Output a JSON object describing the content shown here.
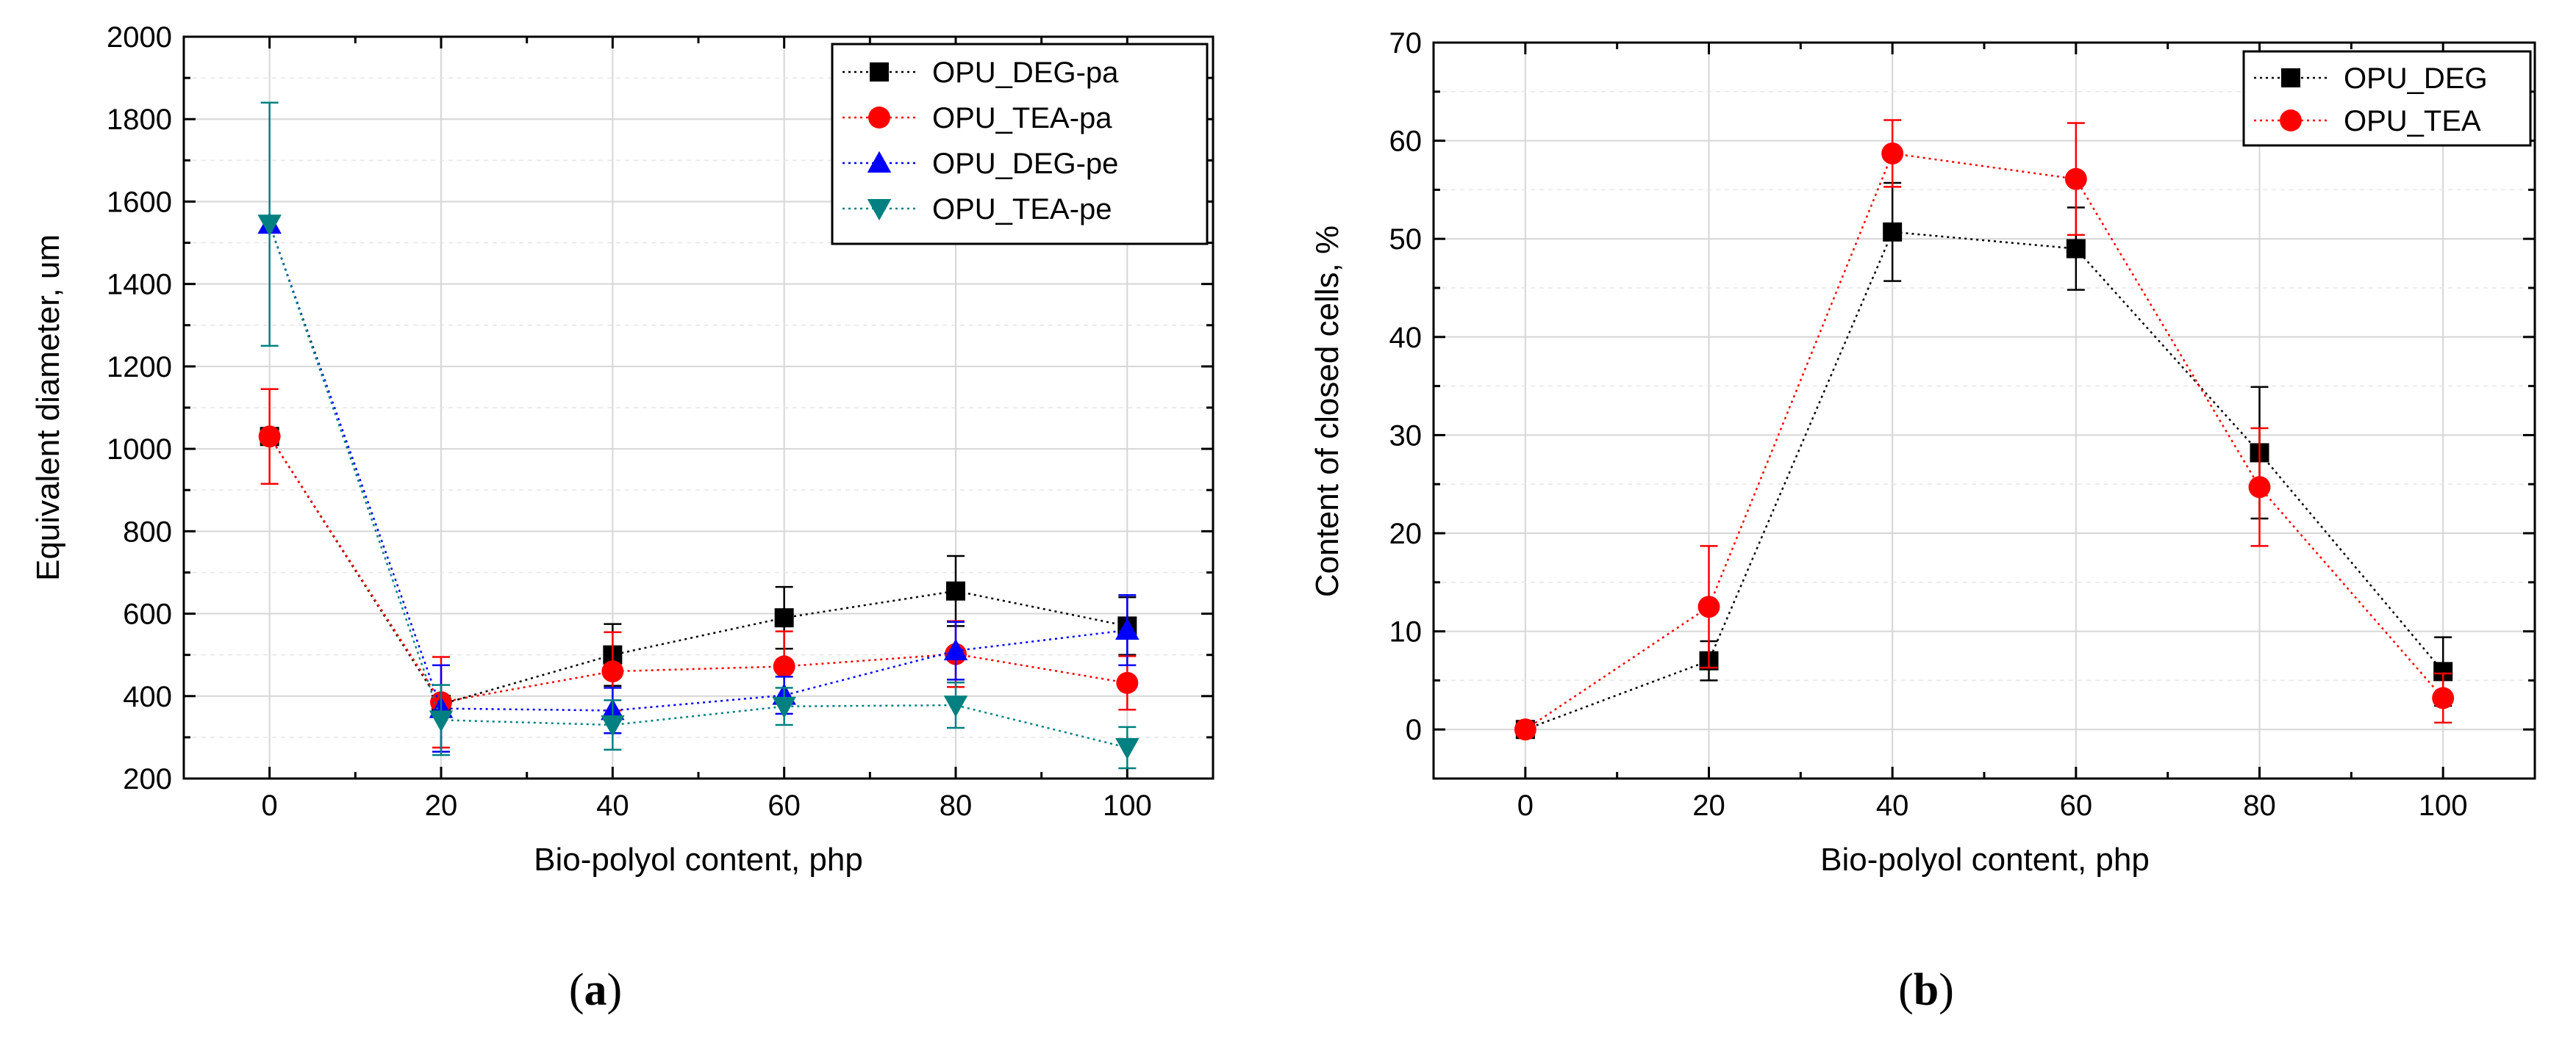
{
  "chart_data": [
    {
      "id": "a",
      "type": "line",
      "caption": {
        "open": "(",
        "letter": "a",
        "close": ")"
      },
      "xlabel": "Bio-polyol content, php",
      "ylabel": "Equivalent diameter, um",
      "xlim": [
        -10,
        110
      ],
      "ylim": [
        200,
        2000
      ],
      "x_ticks": [
        0,
        20,
        40,
        60,
        80,
        100
      ],
      "y_ticks": [
        200,
        400,
        600,
        800,
        1000,
        1200,
        1400,
        1600,
        1800,
        2000
      ],
      "grid": true,
      "legend_position": "top-right",
      "x": [
        0,
        20,
        40,
        60,
        80,
        100
      ],
      "series": [
        {
          "name": "OPU_DEG-pa",
          "color": "#000000",
          "marker": "square",
          "values": [
            1030,
            380,
            500,
            590,
            655,
            570
          ],
          "errors": [
            null,
            null,
            75,
            75,
            85,
            70
          ]
        },
        {
          "name": "OPU_TEA-pa",
          "color": "#ff0000",
          "marker": "circle",
          "values": [
            1030,
            385,
            460,
            472,
            502,
            432
          ],
          "errors": [
            115,
            110,
            95,
            85,
            80,
            65
          ]
        },
        {
          "name": "OPU_DEG-pe",
          "color": "#0000ff",
          "marker": "triangle-up",
          "values": [
            1545,
            370,
            365,
            402,
            510,
            560
          ],
          "errors": [
            null,
            105,
            55,
            45,
            70,
            85
          ]
        },
        {
          "name": "OPU_TEA-pe",
          "color": "#008080",
          "marker": "triangle-down",
          "values": [
            1545,
            342,
            330,
            375,
            378,
            275
          ],
          "errors": [
            295,
            85,
            60,
            45,
            55,
            50
          ]
        }
      ]
    },
    {
      "id": "b",
      "type": "line",
      "caption": {
        "open": "(",
        "letter": "b",
        "close": ")"
      },
      "xlabel": "Bio-polyol content, php",
      "ylabel": "Content of closed cells, %",
      "xlim": [
        -10,
        110
      ],
      "ylim": [
        -5,
        70
      ],
      "x_ticks": [
        0,
        20,
        40,
        60,
        80,
        100
      ],
      "y_ticks": [
        0,
        10,
        20,
        30,
        40,
        50,
        60,
        70
      ],
      "grid": true,
      "legend_position": "top-right",
      "x": [
        0,
        20,
        40,
        60,
        80,
        100
      ],
      "series": [
        {
          "name": "OPU_DEG",
          "color": "#000000",
          "marker": "square",
          "values": [
            0,
            7,
            50.7,
            49,
            28.2,
            5.9
          ],
          "errors": [
            null,
            2,
            5,
            4.2,
            6.7,
            3.5
          ]
        },
        {
          "name": "OPU_TEA",
          "color": "#ff0000",
          "marker": "circle",
          "values": [
            0,
            12.5,
            58.7,
            56.1,
            24.7,
            3.2
          ],
          "errors": [
            null,
            6.2,
            3.4,
            5.7,
            6,
            2.5
          ]
        }
      ]
    }
  ]
}
